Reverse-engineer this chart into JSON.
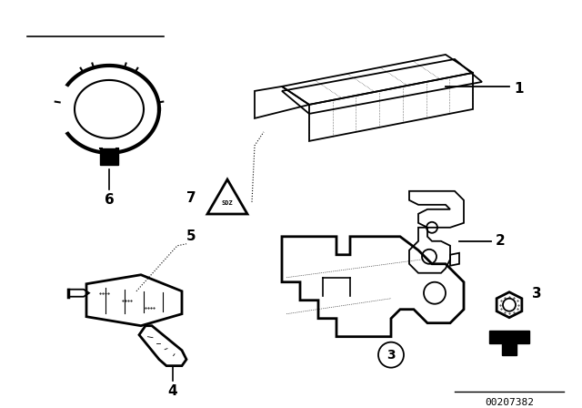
{
  "bg_color": "#ffffff",
  "image_id": "00207382",
  "fig_width": 6.4,
  "fig_height": 4.48,
  "dpi": 100,
  "lw": 1.3,
  "lw2": 2.0
}
